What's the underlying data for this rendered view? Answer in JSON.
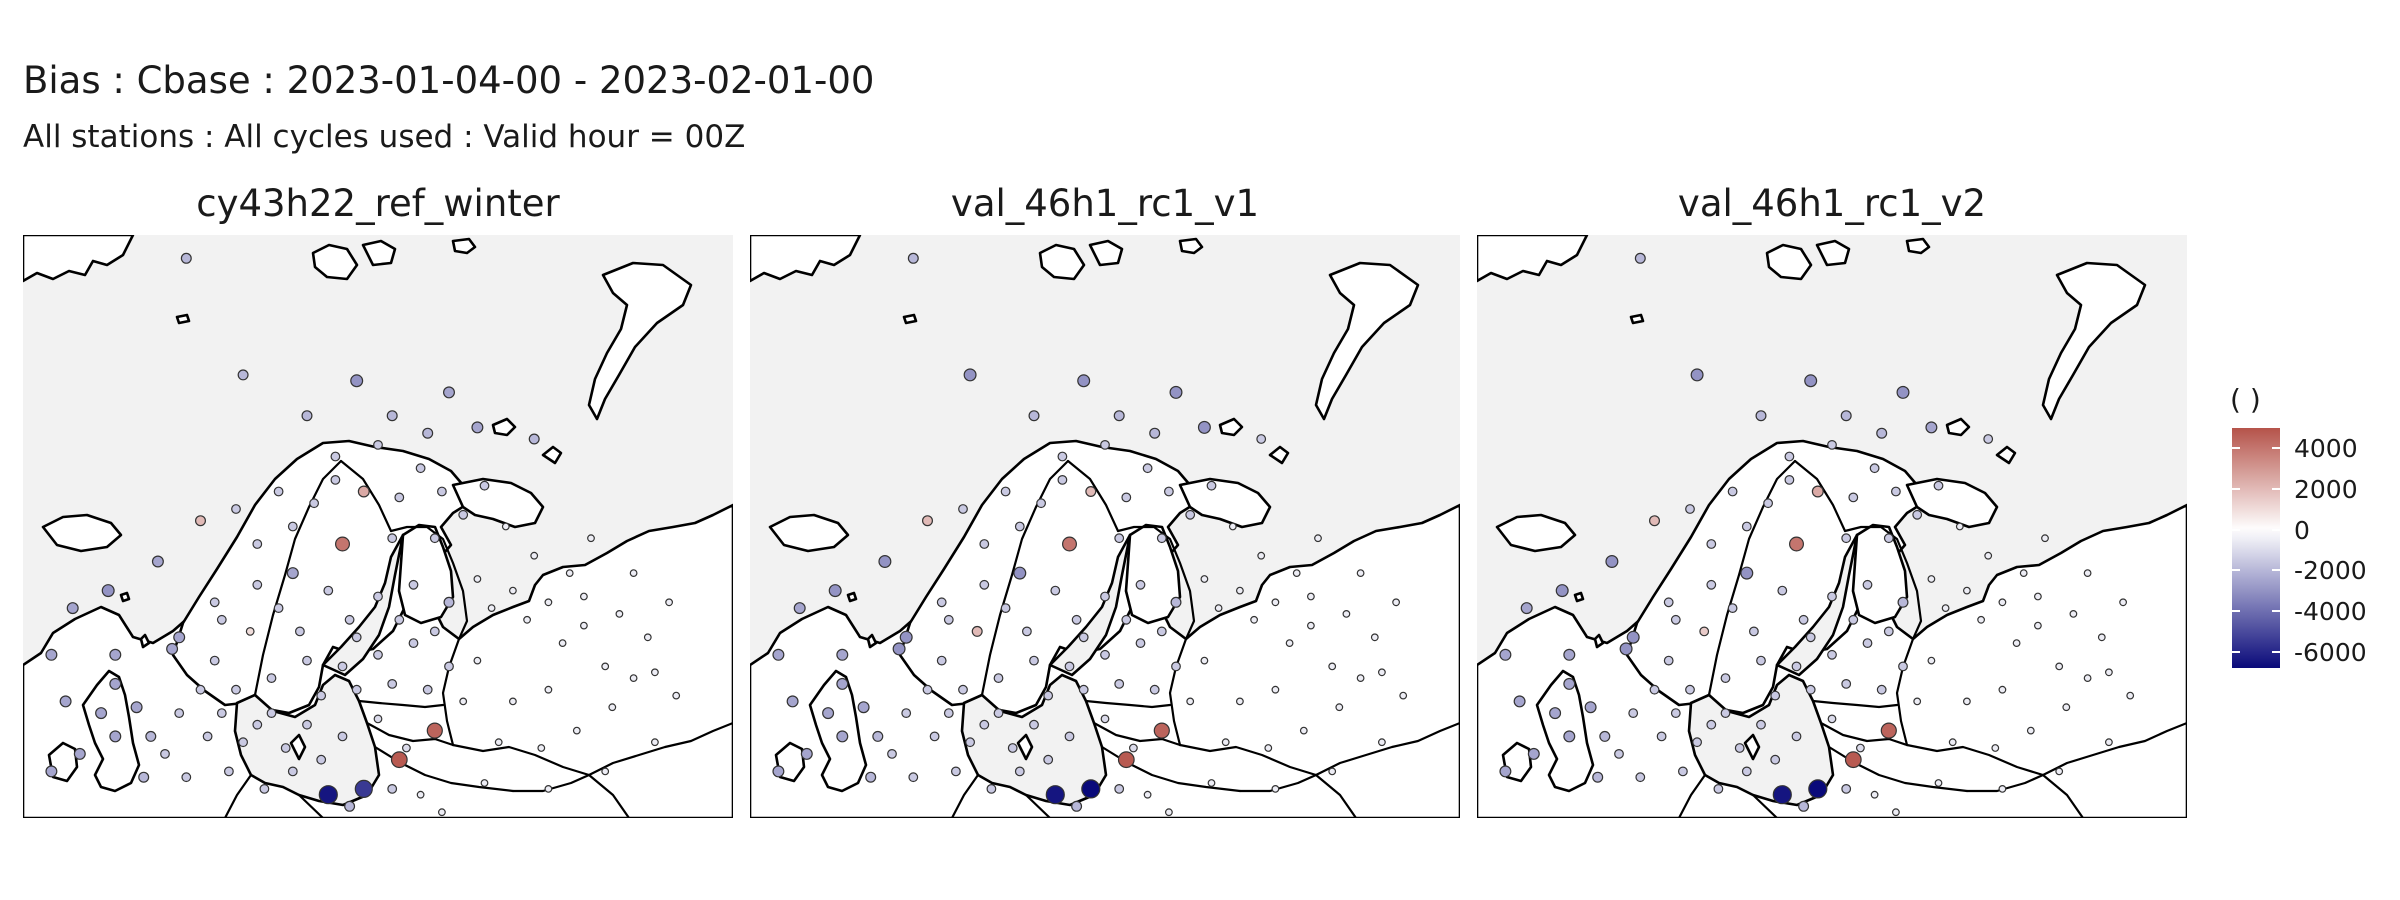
{
  "title": "Bias : Cbase : 2023-01-04-00 - 2023-02-01-00",
  "subtitle": "All stations : All cycles used : Valid hour = 00Z",
  "panels": [
    {
      "name": "cy43h22_ref_winter"
    },
    {
      "name": "val_46h1_rc1_v1"
    },
    {
      "name": "val_46h1_rc1_v2"
    }
  ],
  "legend": {
    "title": "( )",
    "limits": [
      -6800,
      5000
    ],
    "ticks": [
      4000,
      2000,
      0,
      -2000,
      -4000,
      -6000
    ],
    "tick_labels": [
      "4000",
      "2000",
      "0",
      "-2000",
      "-4000",
      "-6000"
    ],
    "colors": {
      "low": "#0a0a7a",
      "mid": "#ffffff",
      "high": "#b5534a",
      "sea": "#f2f2f2",
      "land": "#ffffff"
    }
  },
  "map_data": {
    "stations": [
      [
        0.23,
        0.04,
        -2000,
        -2000,
        -2000
      ],
      [
        0.31,
        0.24,
        -2000,
        -3000,
        -3000
      ],
      [
        0.4,
        0.31,
        -2000,
        -2000,
        -2000
      ],
      [
        0.47,
        0.25,
        -3000,
        -3000,
        -3000
      ],
      [
        0.52,
        0.31,
        -2000,
        -2000,
        -2000
      ],
      [
        0.6,
        0.27,
        -2500,
        -3000,
        -3000
      ],
      [
        0.64,
        0.33,
        -2500,
        -3000,
        -2500
      ],
      [
        0.72,
        0.35,
        -2000,
        -1500,
        -1500
      ],
      [
        0.56,
        0.4,
        -1500,
        -1500,
        -1500
      ],
      [
        0.44,
        0.42,
        -1500,
        -1500,
        -1500
      ],
      [
        0.48,
        0.44,
        2500,
        2000,
        2500
      ],
      [
        0.38,
        0.5,
        -1500,
        -1500,
        -1500
      ],
      [
        0.33,
        0.53,
        -1500,
        -1500,
        -1500
      ],
      [
        0.38,
        0.58,
        -2500,
        -3000,
        -3000
      ],
      [
        0.45,
        0.53,
        4000,
        4000,
        4000
      ],
      [
        0.52,
        0.52,
        -1500,
        -1500,
        -1500
      ],
      [
        0.58,
        0.52,
        -1500,
        -1500,
        -1500
      ],
      [
        0.62,
        0.48,
        -1500,
        -1500,
        -1500
      ],
      [
        0.68,
        0.5,
        -500,
        -500,
        -500
      ],
      [
        0.72,
        0.55,
        -500,
        -500,
        -500
      ],
      [
        0.77,
        0.58,
        -500,
        -500,
        -500
      ],
      [
        0.8,
        0.52,
        -500,
        -500,
        -500
      ],
      [
        0.25,
        0.49,
        2000,
        2000,
        2000
      ],
      [
        0.19,
        0.56,
        -2500,
        -3000,
        -3000
      ],
      [
        0.12,
        0.61,
        -3000,
        -3000,
        -3000
      ],
      [
        0.07,
        0.64,
        -2500,
        -2500,
        -2500
      ],
      [
        0.04,
        0.72,
        -2500,
        -2500,
        -2500
      ],
      [
        0.13,
        0.72,
        -2500,
        -2500,
        -2500
      ],
      [
        0.22,
        0.69,
        -2500,
        -3000,
        -3000
      ],
      [
        0.28,
        0.66,
        -1500,
        -1500,
        -1500
      ],
      [
        0.32,
        0.68,
        1000,
        2000,
        1500
      ],
      [
        0.36,
        0.64,
        -1500,
        -1500,
        -1500
      ],
      [
        0.43,
        0.61,
        -1500,
        -1500,
        -1500
      ],
      [
        0.46,
        0.66,
        -1500,
        -1500,
        -1500
      ],
      [
        0.5,
        0.62,
        -1500,
        -1500,
        -1500
      ],
      [
        0.55,
        0.6,
        -1500,
        -1500,
        -1500
      ],
      [
        0.6,
        0.63,
        -2000,
        -2000,
        -2000
      ],
      [
        0.66,
        0.64,
        -500,
        -500,
        -500
      ],
      [
        0.71,
        0.66,
        -500,
        -500,
        -500
      ],
      [
        0.76,
        0.7,
        -500,
        -500,
        -500
      ],
      [
        0.82,
        0.74,
        -500,
        -500,
        -500
      ],
      [
        0.74,
        0.78,
        -500,
        -500,
        -500
      ],
      [
        0.69,
        0.8,
        -500,
        -500,
        -500
      ],
      [
        0.64,
        0.73,
        -500,
        -500,
        -500
      ],
      [
        0.6,
        0.74,
        -1500,
        -1500,
        -1500
      ],
      [
        0.55,
        0.7,
        -1500,
        -1500,
        -1500
      ],
      [
        0.5,
        0.72,
        -1500,
        -1500,
        -1500
      ],
      [
        0.45,
        0.74,
        -1500,
        -1500,
        -1500
      ],
      [
        0.4,
        0.73,
        -1500,
        -1500,
        -1500
      ],
      [
        0.35,
        0.76,
        -1500,
        -1500,
        -1500
      ],
      [
        0.3,
        0.78,
        -1500,
        -1500,
        -1500
      ],
      [
        0.21,
        0.71,
        -2500,
        -3000,
        -3000
      ],
      [
        0.13,
        0.77,
        -2500,
        -2500,
        -2500
      ],
      [
        0.11,
        0.82,
        -2500,
        -2500,
        -2500
      ],
      [
        0.06,
        0.8,
        -2500,
        -2500,
        -2500
      ],
      [
        0.13,
        0.86,
        -2500,
        -2500,
        -2500
      ],
      [
        0.2,
        0.89,
        -1500,
        -1500,
        -1500
      ],
      [
        0.26,
        0.86,
        -1500,
        -1500,
        -1500
      ],
      [
        0.31,
        0.87,
        -1500,
        -1500,
        -1500
      ],
      [
        0.35,
        0.82,
        -1500,
        -1500,
        -1500
      ],
      [
        0.4,
        0.84,
        -1500,
        -1500,
        -1500
      ],
      [
        0.45,
        0.86,
        -1500,
        -1500,
        -1500
      ],
      [
        0.5,
        0.83,
        -1000,
        -1000,
        -1000
      ],
      [
        0.54,
        0.88,
        -1000,
        -1000,
        -1000
      ],
      [
        0.58,
        0.85,
        4500,
        4500,
        4500
      ],
      [
        0.62,
        0.8,
        -500,
        -500,
        -500
      ],
      [
        0.57,
        0.78,
        -1500,
        -1500,
        -1500
      ],
      [
        0.67,
        0.87,
        -500,
        -500,
        -500
      ],
      [
        0.73,
        0.88,
        -500,
        -500,
        -500
      ],
      [
        0.78,
        0.85,
        -500,
        -500,
        -500
      ],
      [
        0.83,
        0.81,
        -500,
        -500,
        -500
      ],
      [
        0.86,
        0.76,
        -500,
        -500,
        -500
      ],
      [
        0.88,
        0.69,
        -500,
        -500,
        -500
      ],
      [
        0.91,
        0.63,
        -500,
        -500,
        -500
      ],
      [
        0.86,
        0.58,
        -500,
        -500,
        -500
      ],
      [
        0.79,
        0.62,
        -500,
        -500,
        -500
      ],
      [
        0.53,
        0.9,
        4800,
        4800,
        4800
      ],
      [
        0.56,
        0.96,
        -500,
        -500,
        -500
      ],
      [
        0.42,
        0.9,
        -1500,
        -1500,
        -1500
      ],
      [
        0.38,
        0.92,
        -1500,
        -1500,
        -1500
      ],
      [
        0.43,
        0.96,
        -6500,
        -6500,
        -6500
      ],
      [
        0.48,
        0.95,
        -5500,
        -6800,
        -6800
      ],
      [
        0.46,
        0.98,
        -2000,
        -2000,
        -2000
      ],
      [
        0.52,
        0.95,
        -1500,
        -1500,
        -1500
      ],
      [
        0.08,
        0.89,
        -2500,
        -2500,
        -2500
      ],
      [
        0.04,
        0.92,
        -2500,
        -2500,
        -2500
      ],
      [
        0.17,
        0.93,
        -2000,
        -2000,
        -2000
      ],
      [
        0.23,
        0.93,
        -1500,
        -1500,
        -1500
      ],
      [
        0.29,
        0.92,
        -1500,
        -1500,
        -1500
      ],
      [
        0.34,
        0.95,
        -1500,
        -1500,
        -1500
      ],
      [
        0.59,
        0.99,
        -500,
        -500,
        -500
      ],
      [
        0.65,
        0.94,
        -500,
        -500,
        -500
      ],
      [
        0.74,
        0.95,
        -500,
        -500,
        -500
      ],
      [
        0.82,
        0.92,
        -500,
        -500,
        -500
      ],
      [
        0.89,
        0.87,
        -500,
        -500,
        -500
      ],
      [
        0.92,
        0.79,
        -500,
        -500,
        -500
      ],
      [
        0.27,
        0.63,
        -1500,
        -1500,
        -1500
      ],
      [
        0.33,
        0.6,
        -1500,
        -1500,
        -1500
      ],
      [
        0.39,
        0.68,
        -1500,
        -1500,
        -1500
      ],
      [
        0.47,
        0.69,
        -1500,
        -1500,
        -1500
      ],
      [
        0.53,
        0.66,
        -1500,
        -1500,
        -1500
      ],
      [
        0.58,
        0.68,
        -1500,
        -1500,
        -1500
      ],
      [
        0.44,
        0.38,
        -1500,
        -1500,
        -1500
      ],
      [
        0.5,
        0.36,
        -1500,
        -1500,
        -1500
      ],
      [
        0.57,
        0.34,
        -2000,
        -2000,
        -2000
      ],
      [
        0.53,
        0.45,
        -1500,
        -1500,
        -1500
      ],
      [
        0.59,
        0.44,
        -1500,
        -1500,
        -1500
      ],
      [
        0.65,
        0.43,
        -1500,
        -1500,
        -1500
      ],
      [
        0.41,
        0.46,
        -1500,
        -1500,
        -1500
      ],
      [
        0.36,
        0.44,
        -1500,
        -1500,
        -1500
      ],
      [
        0.3,
        0.47,
        -1500,
        -1500,
        -1500
      ],
      [
        0.27,
        0.73,
        -1500,
        -1500,
        -1500
      ],
      [
        0.25,
        0.78,
        -1500,
        -1500,
        -1500
      ],
      [
        0.28,
        0.82,
        -1500,
        -1500,
        -1500
      ],
      [
        0.33,
        0.84,
        -1500,
        -1500,
        -1500
      ],
      [
        0.37,
        0.88,
        -1500,
        -1500,
        -1500
      ],
      [
        0.16,
        0.81,
        -2500,
        -2500,
        -2500
      ],
      [
        0.18,
        0.86,
        -2000,
        -2000,
        -2000
      ],
      [
        0.22,
        0.82,
        -1500,
        -1500,
        -1500
      ],
      [
        0.42,
        0.79,
        -1500,
        -1500,
        -1500
      ],
      [
        0.47,
        0.78,
        -1500,
        -1500,
        -1500
      ],
      [
        0.52,
        0.77,
        -1500,
        -1500,
        -1500
      ],
      [
        0.64,
        0.59,
        -500,
        -500,
        -500
      ],
      [
        0.69,
        0.61,
        -500,
        -500,
        -500
      ],
      [
        0.74,
        0.63,
        -500,
        -500,
        -500
      ],
      [
        0.79,
        0.67,
        -500,
        -500,
        -500
      ],
      [
        0.84,
        0.65,
        -500,
        -500,
        -500
      ],
      [
        0.89,
        0.75,
        -500,
        -500,
        -500
      ]
    ]
  }
}
